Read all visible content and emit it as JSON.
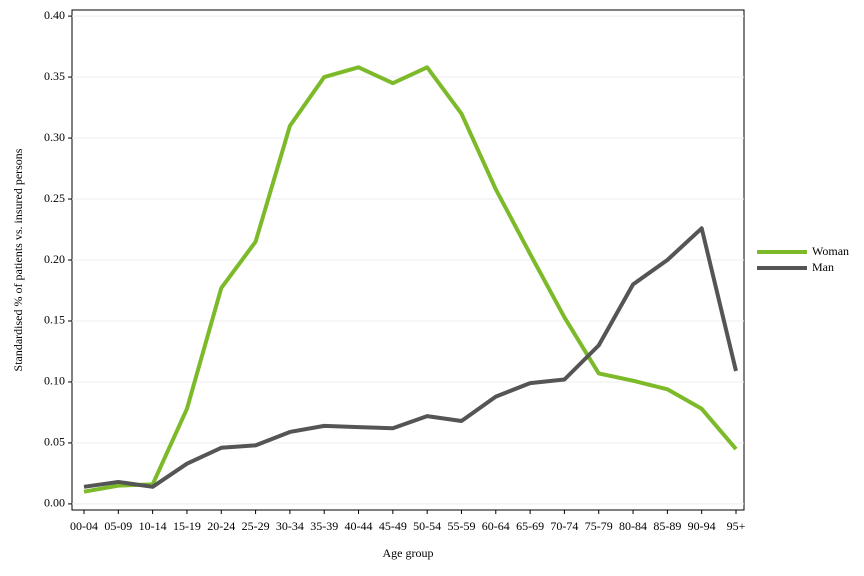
{
  "chart_data": {
    "type": "line",
    "xlabel": "Age group",
    "ylabel": "Standardised % of patients vs. insured persons",
    "categories": [
      "00-04",
      "05-09",
      "10-14",
      "15-19",
      "20-24",
      "25-29",
      "30-34",
      "35-39",
      "40-44",
      "45-49",
      "50-54",
      "55-59",
      "60-64",
      "65-69",
      "70-74",
      "75-79",
      "80-84",
      "85-89",
      "90-94",
      "95+"
    ],
    "series": [
      {
        "name": "Woman",
        "color": "#7dba2a",
        "values": [
          0.01,
          0.015,
          0.016,
          0.078,
          0.177,
          0.215,
          0.31,
          0.35,
          0.358,
          0.345,
          0.358,
          0.32,
          0.258,
          0.205,
          0.153,
          0.107,
          0.101,
          0.094,
          0.078,
          0.045
        ]
      },
      {
        "name": "Man",
        "color": "#555555",
        "values": [
          0.014,
          0.018,
          0.014,
          0.033,
          0.046,
          0.048,
          0.059,
          0.064,
          0.063,
          0.062,
          0.072,
          0.068,
          0.088,
          0.099,
          0.102,
          0.13,
          0.18,
          0.2,
          0.226,
          0.109
        ]
      }
    ],
    "ylim": [
      -0.005,
      0.405
    ],
    "yticks": [
      {
        "value": 0,
        "label": "0.00"
      },
      {
        "value": 0.05,
        "label": "0.05"
      },
      {
        "value": 0.1,
        "label": "0.10"
      },
      {
        "value": 0.15,
        "label": "0.15"
      },
      {
        "value": 0.2,
        "label": "0.20"
      },
      {
        "value": 0.25,
        "label": "0.25"
      },
      {
        "value": 0.3,
        "label": "0.30"
      },
      {
        "value": 0.35,
        "label": "0.35"
      },
      {
        "value": 0.4,
        "label": "0.40"
      }
    ],
    "grid": true,
    "legend": "right"
  }
}
